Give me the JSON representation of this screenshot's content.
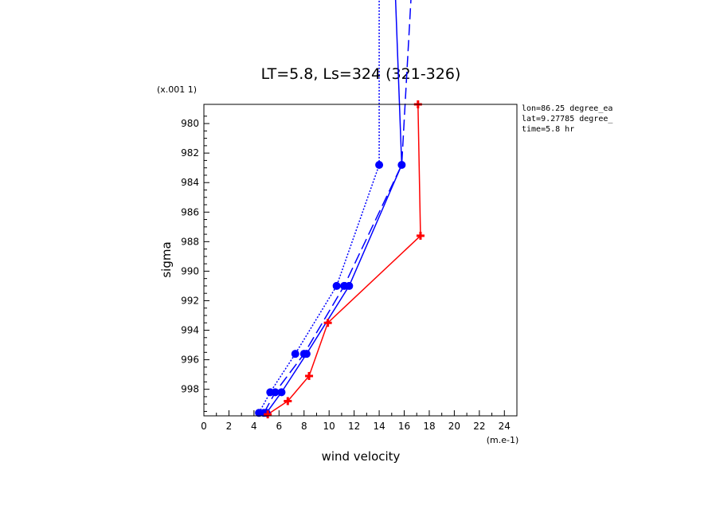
{
  "chart_data": {
    "type": "line",
    "title": "LT=5.8, Ls=324 (321-326)",
    "xlabel": "wind velocity",
    "ylabel": "sigma",
    "x_units": "(m.e-1)",
    "y_units": "(x.001 1)",
    "xlim": [
      0,
      25
    ],
    "ylim": [
      999.8,
      978.7
    ],
    "x_ticks": [
      0,
      2,
      4,
      6,
      8,
      10,
      12,
      14,
      16,
      18,
      20,
      22,
      24
    ],
    "y_ticks": [
      980,
      982,
      984,
      986,
      988,
      990,
      992,
      994,
      996,
      998
    ],
    "y_tick_labels": [
      "980",
      "982",
      "984",
      "986",
      "988",
      "990",
      "992",
      "994",
      "996",
      "998"
    ],
    "grid": false,
    "annotations": [
      "lon=86.25 degree_ea",
      "lat=9.27785 degree_",
      "time=5.8 hr"
    ],
    "series": [
      {
        "color": "#0000ff",
        "dash": "2,2",
        "marker": "circle",
        "points": [
          [
            4.4,
            999.6
          ],
          [
            5.3,
            998.2
          ],
          [
            7.3,
            995.6
          ],
          [
            10.6,
            991.0
          ],
          [
            14.0,
            982.8
          ],
          [
            14.0,
            960.0
          ]
        ],
        "marked": [
          0,
          1,
          2,
          3,
          4
        ]
      },
      {
        "color": "#0000ff",
        "dash": "",
        "marker": "circle",
        "points": [
          [
            5.0,
            999.6
          ],
          [
            6.2,
            998.2
          ],
          [
            8.2,
            995.6
          ],
          [
            11.6,
            991.0
          ],
          [
            15.8,
            982.8
          ],
          [
            14.8,
            960.0
          ]
        ],
        "marked": [
          0,
          1,
          2,
          3,
          4
        ]
      },
      {
        "color": "#0000ff",
        "dash": "14,6",
        "marker": "circle",
        "points": [
          [
            4.8,
            999.6
          ],
          [
            5.7,
            998.2
          ],
          [
            8.0,
            995.6
          ],
          [
            11.2,
            991.0
          ],
          [
            15.8,
            982.8
          ],
          [
            17.3,
            960.0
          ]
        ],
        "marked": [
          0,
          1,
          2,
          3
        ]
      },
      {
        "color": "#ff0000",
        "dash": "",
        "marker": "plus",
        "points": [
          [
            5.1,
            999.7
          ],
          [
            6.7,
            998.8
          ],
          [
            8.4,
            997.1
          ],
          [
            9.9,
            993.5
          ],
          [
            17.3,
            987.6
          ],
          [
            17.1,
            978.7
          ]
        ],
        "marked": [
          0,
          1,
          2,
          3,
          4,
          5
        ]
      }
    ]
  }
}
